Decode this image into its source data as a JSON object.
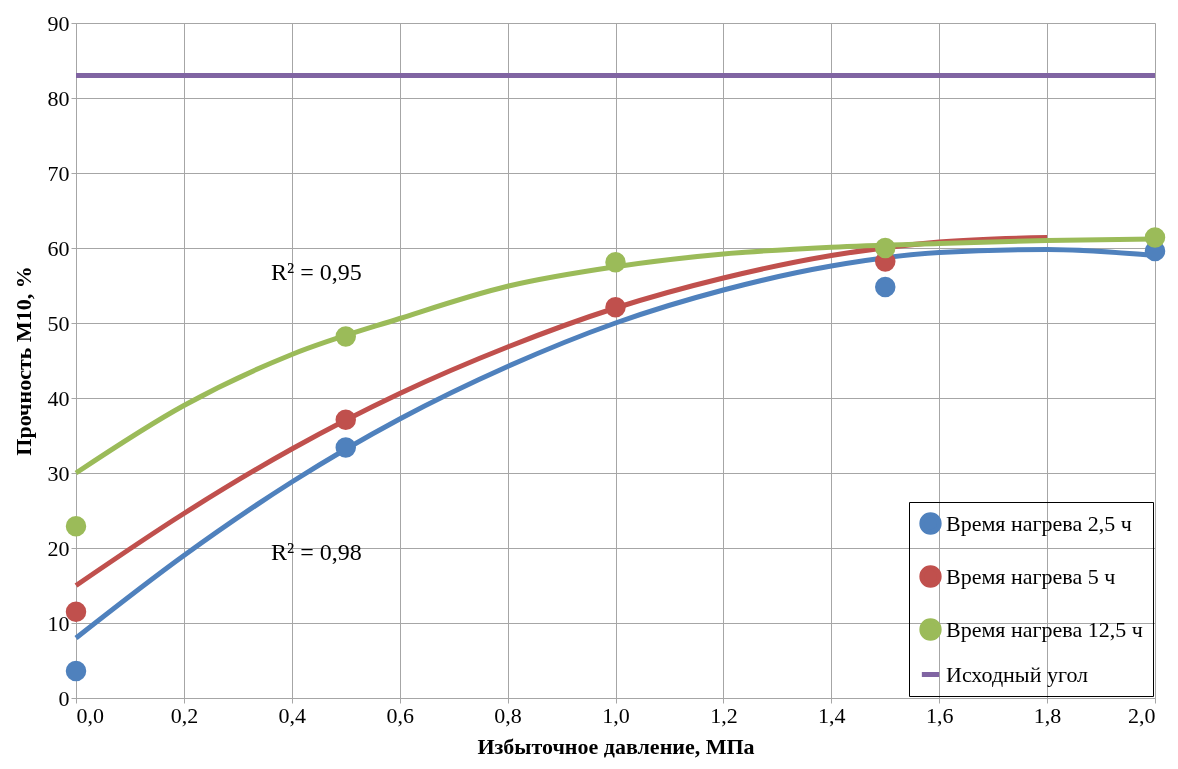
{
  "chart_data": {
    "type": "scatter",
    "xlabel": "Избыточное давление, МПа",
    "ylabel": "Прочность М10, %",
    "xlim": [
      0,
      2
    ],
    "ylim": [
      0,
      90
    ],
    "xticks": [
      {
        "value": 0,
        "label": "0,0"
      },
      {
        "value": 0.2,
        "label": "0,2"
      },
      {
        "value": 0.4,
        "label": "0,4"
      },
      {
        "value": 0.6,
        "label": "0,6"
      },
      {
        "value": 0.8,
        "label": "0,8"
      },
      {
        "value": 1,
        "label": "1,0"
      },
      {
        "value": 1.2,
        "label": "1,2"
      },
      {
        "value": 1.4,
        "label": "1,4"
      },
      {
        "value": 1.6,
        "label": "1,6"
      },
      {
        "value": 1.8,
        "label": "1,8"
      },
      {
        "value": 2,
        "label": "2,0"
      }
    ],
    "yticks": [
      0,
      10,
      20,
      30,
      40,
      50,
      60,
      70,
      80,
      90
    ],
    "grid": true,
    "legend": "bottom right",
    "series": [
      {
        "name": "Время нагрева 2,5 ч",
        "marker": "circle",
        "color": "#4f81bd",
        "x": [
          0,
          0.5,
          1.5,
          2
        ],
        "values": [
          3.6,
          33.4,
          54.8,
          59.6
        ]
      },
      {
        "name": "Время нагрева 5 ч",
        "marker": "circle",
        "color": "#c0504d",
        "x": [
          0,
          0.5,
          1,
          1.5
        ],
        "values": [
          11.5,
          37.1,
          52.1,
          58.2
        ]
      },
      {
        "name": "Время нагрева 12,5 ч",
        "marker": "circle",
        "color": "#9bbb59",
        "x": [
          0,
          0.5,
          1,
          1.5,
          2
        ],
        "values": [
          22.9,
          48.2,
          58.1,
          60.0,
          61.4
        ]
      },
      {
        "name": "Исходный угол",
        "type": "line",
        "marker": "none",
        "line_style": "solid",
        "color": "#8064a2",
        "x": [
          0,
          2
        ],
        "values": [
          83,
          83
        ]
      },
      {
        "type": "line",
        "line_style": "solid",
        "color": "#4f81bd",
        "x": [
          0,
          0.2,
          0.4,
          0.6,
          0.8,
          1,
          1.2,
          1.4,
          1.6,
          1.8,
          2
        ],
        "values": [
          8,
          19,
          28.8,
          37.2,
          44.2,
          50,
          54.4,
          57.6,
          59.4,
          59.8,
          59
        ]
      },
      {
        "type": "line",
        "line_style": "solid",
        "color": "#c0504d",
        "x": [
          0,
          0.2,
          0.4,
          0.6,
          0.8,
          1,
          1.2,
          1.4,
          1.6,
          1.8
        ],
        "values": [
          15,
          24.6,
          33.2,
          40.6,
          46.8,
          52,
          56,
          59,
          60.8,
          61.4
        ]
      },
      {
        "type": "line",
        "line_style": "solid",
        "color": "#9bbb59",
        "x": [
          0,
          0.2,
          0.4,
          0.6,
          0.8,
          1,
          1.2,
          1.4,
          1.6,
          1.8,
          2
        ],
        "values": [
          30,
          39,
          45.8,
          50.6,
          54.9,
          57.5,
          59.2,
          60.1,
          60.6,
          61,
          61.2
        ]
      }
    ],
    "annotations": [
      "R² = 0,95",
      "R² = 0,98"
    ]
  }
}
